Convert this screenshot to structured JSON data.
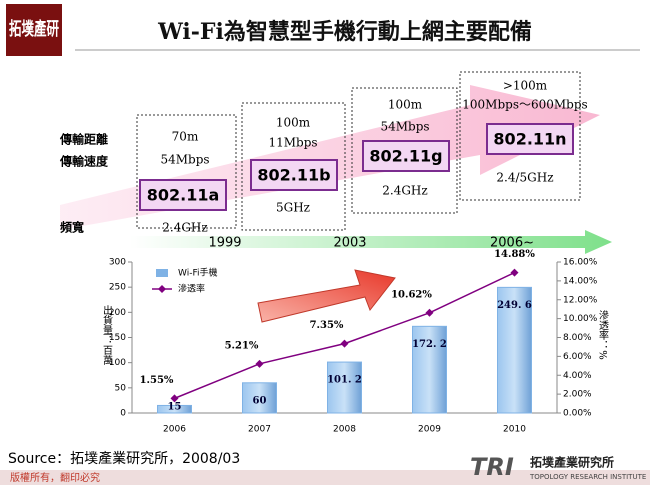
{
  "header": {
    "logo": "拓墣產研",
    "title": "Wi-Fi為智慧型手機行動上網主要配備"
  },
  "row_labels": [
    "傳輸距離",
    "傳輸速度",
    "頻寬"
  ],
  "standards": [
    {
      "name": "802.11a",
      "distance": "70m",
      "speed": "54Mbps",
      "band": "2.4GHz"
    },
    {
      "name": "802.11b",
      "distance": "100m",
      "speed": "11Mbps",
      "band": "5GHz"
    },
    {
      "name": "802.11g",
      "distance": "100m",
      "speed": "54Mbps",
      "band": "2.4GHz"
    },
    {
      "name": "802.11n",
      "distance": ">100m",
      "speed": "100Mbps～600Mbps",
      "band": "2.4/5GHz"
    }
  ],
  "timeline": [
    "1999",
    "2003",
    "2006~"
  ],
  "chart_data": {
    "type": "bar-line",
    "categories": [
      "2006",
      "2007",
      "2008",
      "2009",
      "2010"
    ],
    "series": [
      {
        "name": "Wi-Fi手機",
        "color": "#7fb2e5",
        "values": [
          15,
          60,
          101.2,
          172.2,
          249.6
        ],
        "value_labels": [
          "15",
          "60",
          "101. 2",
          "172. 2",
          "249. 6"
        ]
      },
      {
        "name": "滲透率",
        "color": "#800080",
        "axis": "y2",
        "values": [
          1.55,
          5.21,
          7.35,
          10.62,
          14.88
        ],
        "value_labels": [
          "1.55%",
          "5.21%",
          "7.35%",
          "10.62%",
          "14.88%"
        ]
      }
    ],
    "ylim": [
      0,
      300
    ],
    "yticks": [
      0,
      50,
      100,
      150,
      200,
      250,
      300
    ],
    "y2lim": [
      0,
      16
    ],
    "y2ticks": [
      {
        "value": 0,
        "label": "0.00%"
      },
      {
        "value": 2,
        "label": "2.00%"
      },
      {
        "value": 4,
        "label": "4.00%"
      },
      {
        "value": 6,
        "label": "6.00%"
      },
      {
        "value": 8,
        "label": "8.00%"
      },
      {
        "value": 10,
        "label": "10.00%"
      },
      {
        "value": 12,
        "label": "12.00%"
      },
      {
        "value": 14,
        "label": "14.00%"
      },
      {
        "value": 16,
        "label": "16.00%"
      }
    ],
    "y_label": "出貨量：百萬",
    "y2_label": "滲透率：%"
  },
  "source": "Source：拓墣產業研究所，2008/03",
  "footer": "版權所有，翻印必究",
  "brand": {
    "mark": "TRI",
    "name": "拓墣產業研究所",
    "subtitle": "TOPOLOGY RESEARCH INSTITUTE"
  }
}
